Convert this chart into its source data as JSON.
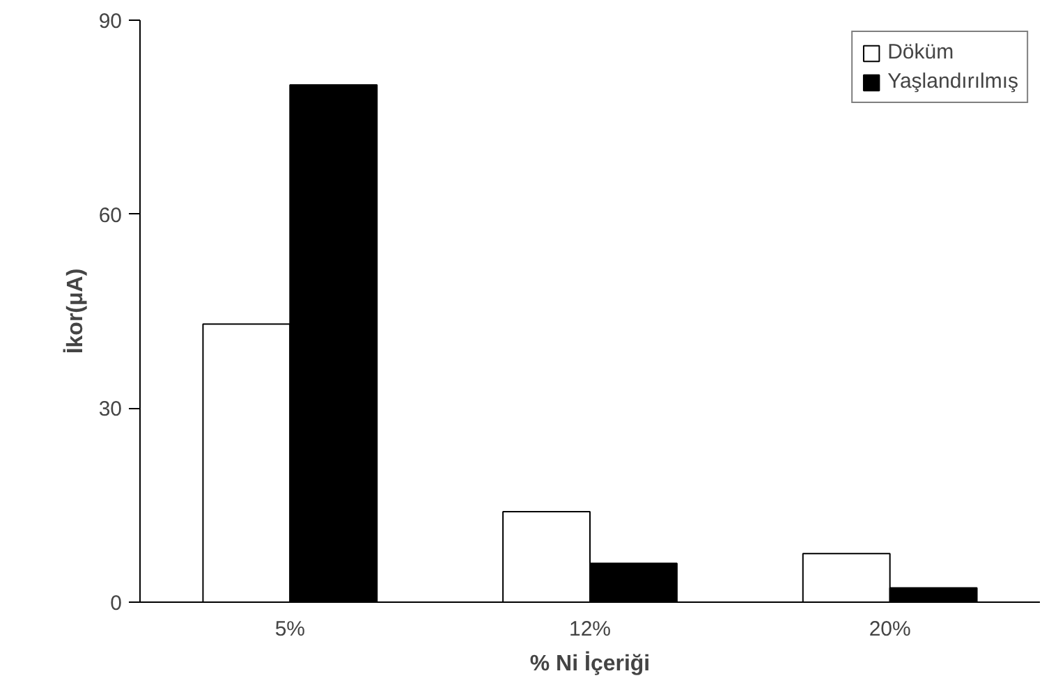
{
  "chart_data": {
    "type": "bar",
    "xlabel": "% Ni İçeriği",
    "ylabel": "İkor(μA)",
    "categories": [
      "5%",
      "12%",
      "20%"
    ],
    "series": [
      {
        "name": "Döküm",
        "color": "#ffffff",
        "values": [
          43,
          14,
          7.5
        ]
      },
      {
        "name": "Yaşlandırılmış",
        "color": "#000000",
        "values": [
          80,
          6,
          2.2
        ]
      }
    ],
    "ylim": [
      0,
      90
    ],
    "yticks": [
      0,
      30,
      60,
      90
    ],
    "grid": false,
    "legend": "top right"
  }
}
